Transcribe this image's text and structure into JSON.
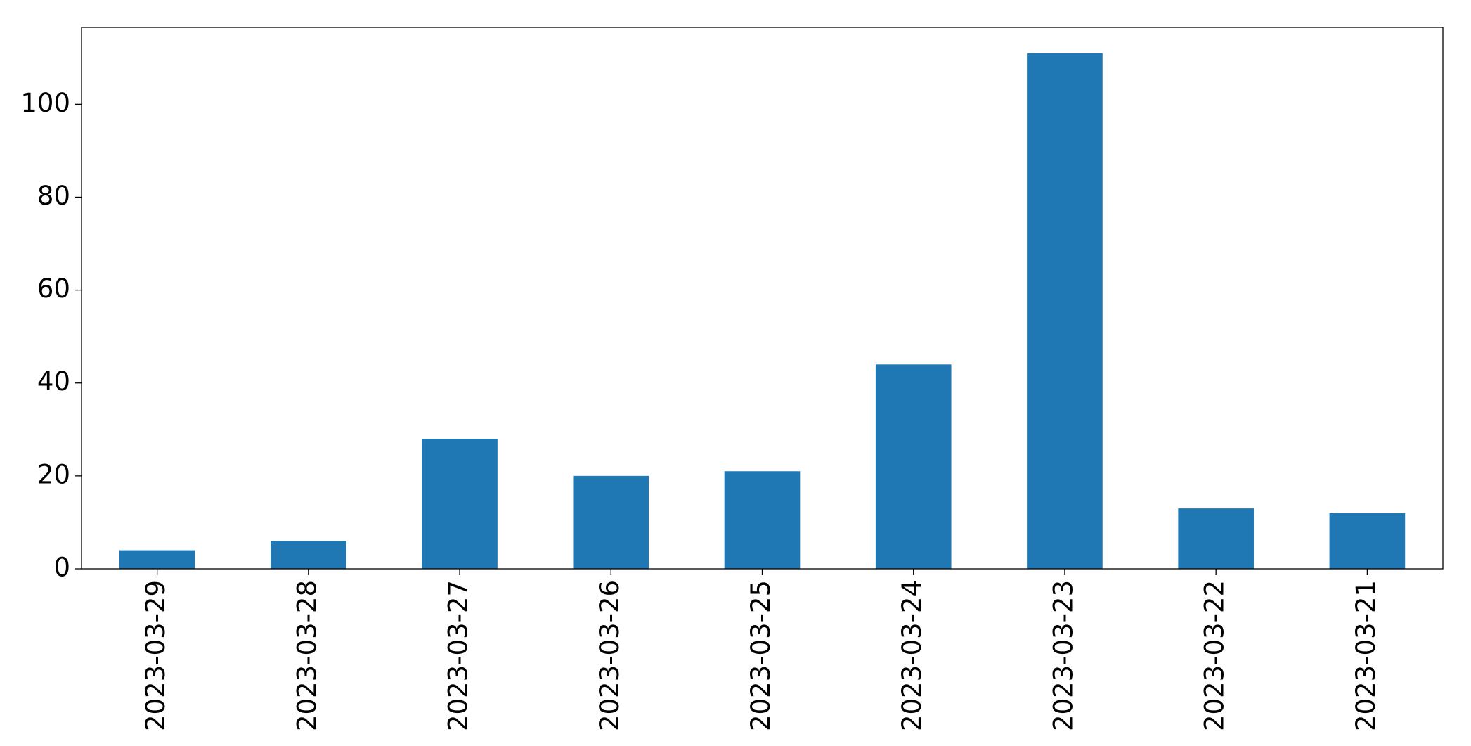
{
  "chart_data": {
    "type": "bar",
    "categories": [
      "2023-03-29",
      "2023-03-28",
      "2023-03-27",
      "2023-03-26",
      "2023-03-25",
      "2023-03-24",
      "2023-03-23",
      "2023-03-22",
      "2023-03-21"
    ],
    "values": [
      4,
      6,
      28,
      20,
      21,
      44,
      111,
      13,
      12
    ],
    "color": "#1f77b4",
    "ylim": [
      0,
      116.55
    ],
    "yticks": [
      0,
      20,
      40,
      60,
      80,
      100
    ],
    "grid": false
  }
}
